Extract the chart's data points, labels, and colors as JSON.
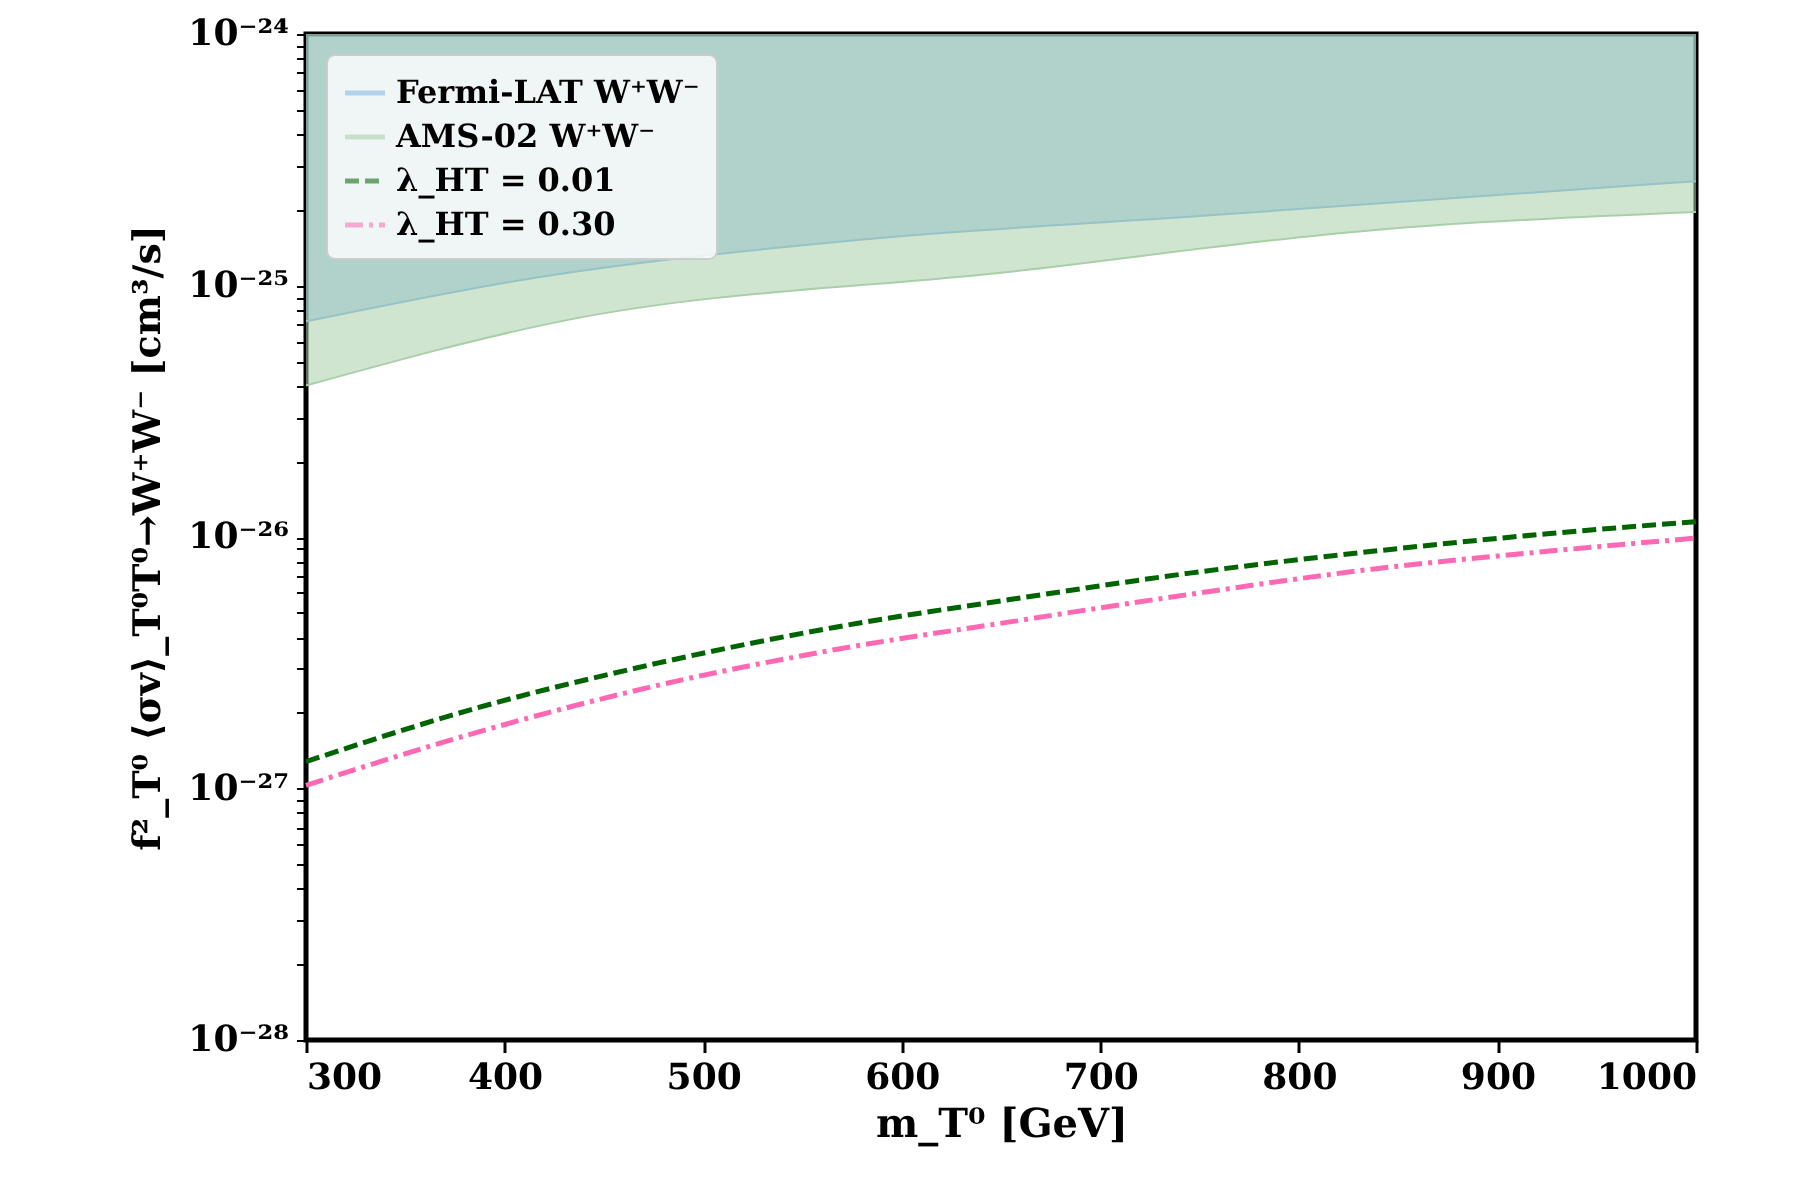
{
  "chart_data": {
    "type": "line",
    "xlabel": "m_T⁰ [GeV]",
    "ylabel": "f²_T⁰ ⟨σv⟩_T⁰T⁰→W⁺W⁻ [cm³/s]",
    "log": "y",
    "xlim": [
      300,
      1000
    ],
    "xticks": [
      300,
      400,
      500,
      600,
      700,
      800,
      900,
      1000
    ],
    "ylim": [
      1e-28,
      1e-24
    ],
    "yticks": [
      {
        "value": 1e-28,
        "label": "10⁻²⁸"
      },
      {
        "value": 2e-28,
        "label": null
      },
      {
        "value": 3e-28,
        "label": null
      },
      {
        "value": 4e-28,
        "label": null
      },
      {
        "value": 5e-28,
        "label": null
      },
      {
        "value": 6e-28,
        "label": null
      },
      {
        "value": 7e-28,
        "label": null
      },
      {
        "value": 8e-28,
        "label": null
      },
      {
        "value": 9e-28,
        "label": null
      },
      {
        "value": 1e-27,
        "label": "10⁻²⁷"
      },
      {
        "value": 2e-27,
        "label": null
      },
      {
        "value": 3e-27,
        "label": null
      },
      {
        "value": 4e-27,
        "label": null
      },
      {
        "value": 5e-27,
        "label": null
      },
      {
        "value": 6e-27,
        "label": null
      },
      {
        "value": 7e-27,
        "label": null
      },
      {
        "value": 8e-27,
        "label": null
      },
      {
        "value": 9e-27,
        "label": null
      },
      {
        "value": 1e-26,
        "label": "10⁻²⁶"
      },
      {
        "value": 2e-26,
        "label": null
      },
      {
        "value": 3e-26,
        "label": null
      },
      {
        "value": 4e-26,
        "label": null
      },
      {
        "value": 5e-26,
        "label": null
      },
      {
        "value": 6e-26,
        "label": null
      },
      {
        "value": 7e-26,
        "label": null
      },
      {
        "value": 8e-26,
        "label": null
      },
      {
        "value": 9e-26,
        "label": null
      },
      {
        "value": 1e-25,
        "label": "10⁻²⁵"
      },
      {
        "value": 2e-25,
        "label": null
      },
      {
        "value": 3e-25,
        "label": null
      },
      {
        "value": 4e-25,
        "label": null
      },
      {
        "value": 5e-25,
        "label": null
      },
      {
        "value": 6e-25,
        "label": null
      },
      {
        "value": 7e-25,
        "label": null
      },
      {
        "value": 8e-25,
        "label": null
      },
      {
        "value": 9e-25,
        "label": null
      },
      {
        "value": 1e-24,
        "label": "10⁻²⁴"
      }
    ],
    "grid": false,
    "legend": "top left",
    "series": [
      {
        "name": "Fermi-LAT W⁺W⁻",
        "type": "line",
        "color": "#7fb3e8",
        "x": [
          300,
          408,
          579,
          750,
          1000
        ],
        "values": [
          7.2e-26,
          1.05e-25,
          1.52e-25,
          1.89e-25,
          2.6e-25
        ],
        "lower": [
          7.2e-26,
          1.05e-25,
          1.52e-25,
          1.89e-25,
          2.6e-25
        ],
        "upper": [
          1e-24,
          1e-24,
          1e-24,
          1e-24,
          1e-24
        ]
      },
      {
        "name": "AMS-02 W⁺W⁻",
        "type": "line",
        "color": "#a9cfa9",
        "x": [
          300,
          432,
          657,
          837,
          1000
        ],
        "values": [
          4e-26,
          7.3e-26,
          1.14e-25,
          1.66e-25,
          1.96e-25
        ],
        "lower": [
          4e-26,
          7.3e-26,
          1.14e-25,
          1.66e-25,
          1.96e-25
        ],
        "upper": [
          1e-24,
          1e-24,
          1e-24,
          1e-24,
          1e-24
        ]
      },
      {
        "name": "λ_HT = 0.01",
        "type": "line",
        "color": "#006400",
        "line_style": "dashed",
        "x": [
          300,
          387,
          477,
          566,
          657,
          746,
          837,
          925,
          1000
        ],
        "values": [
          1.28e-27,
          2.1e-27,
          3.15e-27,
          4.37e-27,
          5.68e-27,
          7.2e-27,
          8.77e-27,
          1.03e-26,
          1.15e-26
        ]
      },
      {
        "name": "λ_HT = 0.30",
        "type": "line",
        "color": "#ff69b4",
        "line_style": "dashdot",
        "x": [
          300,
          387,
          477,
          566,
          657,
          746,
          837,
          925,
          1000
        ],
        "values": [
          1.03e-27,
          1.68e-27,
          2.57e-27,
          3.56e-27,
          4.63e-27,
          5.93e-27,
          7.45e-27,
          8.77e-27,
          9.9e-27
        ]
      }
    ]
  }
}
